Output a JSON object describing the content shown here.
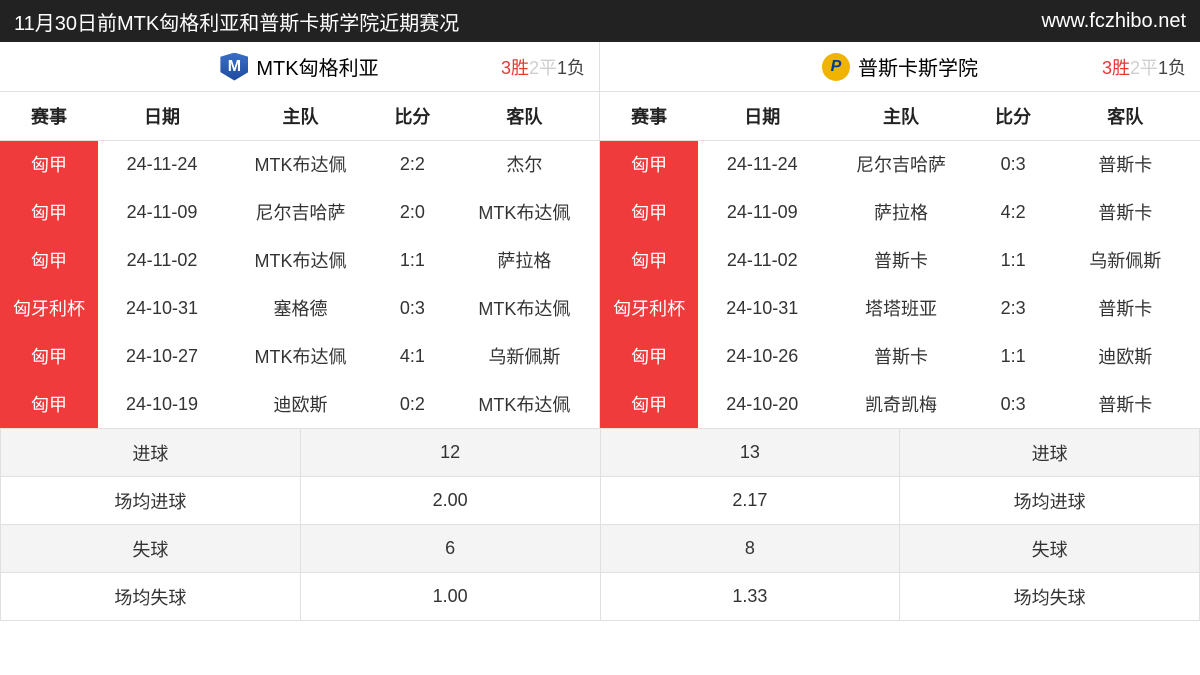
{
  "header": {
    "title": "11月30日前MTK匈格利亚和普斯卡斯学院近期赛况",
    "site": "www.fczhibo.net"
  },
  "columns": {
    "comp": "赛事",
    "date": "日期",
    "home": "主队",
    "score": "比分",
    "away": "客队"
  },
  "colors": {
    "header_bg": "#222222",
    "header_text": "#ffffff",
    "comp_bg": "#ef3b3b",
    "comp_text": "#ffffff",
    "win_color": "#e53935",
    "draw_color": "#cfcfcf",
    "loss_color": "#444444",
    "border": "#e0e0e0",
    "stats_bg_alt": "#f4f4f4"
  },
  "left": {
    "team_name": "MTK匈格利亚",
    "logo_letter": "M",
    "wdl": {
      "w": "3胜",
      "d": "2平",
      "l": "1负"
    },
    "matches": [
      {
        "comp": "匈甲",
        "date": "24-11-24",
        "home": "MTK布达佩",
        "score": "2:2",
        "away": "杰尔"
      },
      {
        "comp": "匈甲",
        "date": "24-11-09",
        "home": "尼尔吉哈萨",
        "score": "2:0",
        "away": "MTK布达佩"
      },
      {
        "comp": "匈甲",
        "date": "24-11-02",
        "home": "MTK布达佩",
        "score": "1:1",
        "away": "萨拉格"
      },
      {
        "comp": "匈牙利杯",
        "date": "24-10-31",
        "home": "塞格德",
        "score": "0:3",
        "away": "MTK布达佩"
      },
      {
        "comp": "匈甲",
        "date": "24-10-27",
        "home": "MTK布达佩",
        "score": "4:1",
        "away": "乌新佩斯"
      },
      {
        "comp": "匈甲",
        "date": "24-10-19",
        "home": "迪欧斯",
        "score": "0:2",
        "away": "MTK布达佩"
      }
    ],
    "stats": {
      "goals_label": "进球",
      "goals": "12",
      "gpg_label": "场均进球",
      "gpg": "2.00",
      "conc_label": "失球",
      "conc": "6",
      "cpg_label": "场均失球",
      "cpg": "1.00"
    }
  },
  "right": {
    "team_name": "普斯卡斯学院",
    "logo_letter": "P",
    "wdl": {
      "w": "3胜",
      "d": "2平",
      "l": "1负"
    },
    "matches": [
      {
        "comp": "匈甲",
        "date": "24-11-24",
        "home": "尼尔吉哈萨",
        "score": "0:3",
        "away": "普斯卡"
      },
      {
        "comp": "匈甲",
        "date": "24-11-09",
        "home": "萨拉格",
        "score": "4:2",
        "away": "普斯卡"
      },
      {
        "comp": "匈甲",
        "date": "24-11-02",
        "home": "普斯卡",
        "score": "1:1",
        "away": "乌新佩斯"
      },
      {
        "comp": "匈牙利杯",
        "date": "24-10-31",
        "home": "塔塔班亚",
        "score": "2:3",
        "away": "普斯卡"
      },
      {
        "comp": "匈甲",
        "date": "24-10-26",
        "home": "普斯卡",
        "score": "1:1",
        "away": "迪欧斯"
      },
      {
        "comp": "匈甲",
        "date": "24-10-20",
        "home": "凯奇凯梅",
        "score": "0:3",
        "away": "普斯卡"
      }
    ],
    "stats": {
      "goals_label": "进球",
      "goals": "13",
      "gpg_label": "场均进球",
      "gpg": "2.17",
      "conc_label": "失球",
      "conc": "8",
      "cpg_label": "场均失球",
      "cpg": "1.33"
    }
  }
}
